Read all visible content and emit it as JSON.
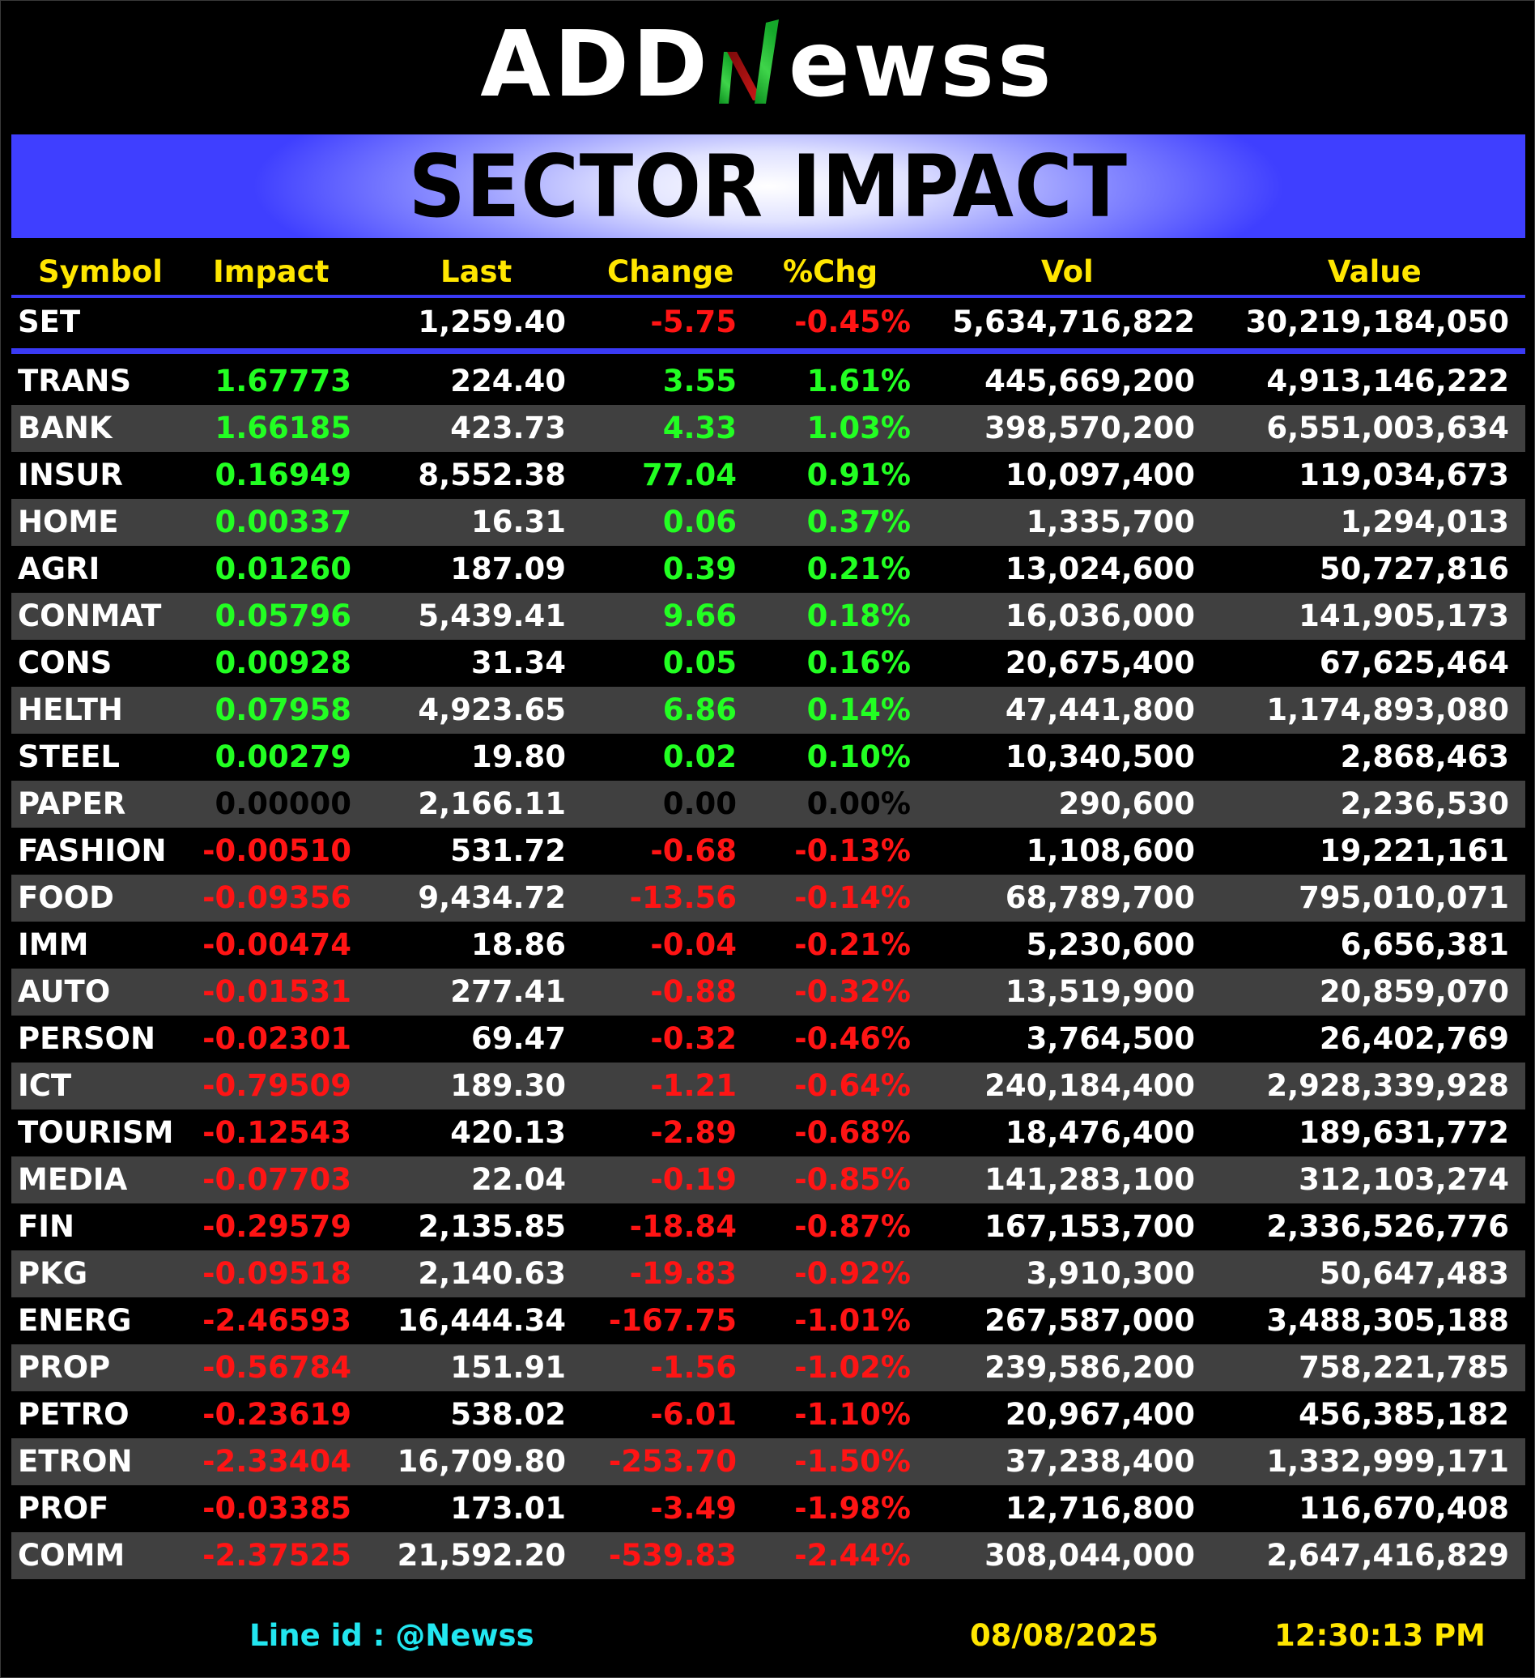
{
  "brand": {
    "logo_text": "ADDNewss",
    "logo_left": "ADD",
    "logo_right": "ewss"
  },
  "title": "SECTOR IMPACT",
  "columns": {
    "symbol": "Symbol",
    "impact": "Impact",
    "last": "Last",
    "change": "Change",
    "pct": "%Chg",
    "vol": "Vol",
    "value": "Value"
  },
  "index": {
    "symbol": "SET",
    "impact": "",
    "last": "1,259.40",
    "change": "-5.75",
    "pct": "-0.45%",
    "vol": "5,634,716,822",
    "value": "30,219,184,050",
    "dir": "neg"
  },
  "rows": [
    {
      "symbol": "TRANS",
      "impact": "1.67773",
      "last": "224.40",
      "change": "3.55",
      "pct": "1.61%",
      "vol": "445,669,200",
      "value": "4,913,146,222",
      "dir": "pos"
    },
    {
      "symbol": "BANK",
      "impact": "1.66185",
      "last": "423.73",
      "change": "4.33",
      "pct": "1.03%",
      "vol": "398,570,200",
      "value": "6,551,003,634",
      "dir": "pos"
    },
    {
      "symbol": "INSUR",
      "impact": "0.16949",
      "last": "8,552.38",
      "change": "77.04",
      "pct": "0.91%",
      "vol": "10,097,400",
      "value": "119,034,673",
      "dir": "pos"
    },
    {
      "symbol": "HOME",
      "impact": "0.00337",
      "last": "16.31",
      "change": "0.06",
      "pct": "0.37%",
      "vol": "1,335,700",
      "value": "1,294,013",
      "dir": "pos"
    },
    {
      "symbol": "AGRI",
      "impact": "0.01260",
      "last": "187.09",
      "change": "0.39",
      "pct": "0.21%",
      "vol": "13,024,600",
      "value": "50,727,816",
      "dir": "pos"
    },
    {
      "symbol": "CONMAT",
      "impact": "0.05796",
      "last": "5,439.41",
      "change": "9.66",
      "pct": "0.18%",
      "vol": "16,036,000",
      "value": "141,905,173",
      "dir": "pos"
    },
    {
      "symbol": "CONS",
      "impact": "0.00928",
      "last": "31.34",
      "change": "0.05",
      "pct": "0.16%",
      "vol": "20,675,400",
      "value": "67,625,464",
      "dir": "pos"
    },
    {
      "symbol": "HELTH",
      "impact": "0.07958",
      "last": "4,923.65",
      "change": "6.86",
      "pct": "0.14%",
      "vol": "47,441,800",
      "value": "1,174,893,080",
      "dir": "pos"
    },
    {
      "symbol": "STEEL",
      "impact": "0.00279",
      "last": "19.80",
      "change": "0.02",
      "pct": "0.10%",
      "vol": "10,340,500",
      "value": "2,868,463",
      "dir": "pos"
    },
    {
      "symbol": "PAPER",
      "impact": "0.00000",
      "last": "2,166.11",
      "change": "0.00",
      "pct": "0.00%",
      "vol": "290,600",
      "value": "2,236,530",
      "dir": "zero"
    },
    {
      "symbol": "FASHION",
      "impact": "-0.00510",
      "last": "531.72",
      "change": "-0.68",
      "pct": "-0.13%",
      "vol": "1,108,600",
      "value": "19,221,161",
      "dir": "neg"
    },
    {
      "symbol": "FOOD",
      "impact": "-0.09356",
      "last": "9,434.72",
      "change": "-13.56",
      "pct": "-0.14%",
      "vol": "68,789,700",
      "value": "795,010,071",
      "dir": "neg"
    },
    {
      "symbol": "IMM",
      "impact": "-0.00474",
      "last": "18.86",
      "change": "-0.04",
      "pct": "-0.21%",
      "vol": "5,230,600",
      "value": "6,656,381",
      "dir": "neg"
    },
    {
      "symbol": "AUTO",
      "impact": "-0.01531",
      "last": "277.41",
      "change": "-0.88",
      "pct": "-0.32%",
      "vol": "13,519,900",
      "value": "20,859,070",
      "dir": "neg"
    },
    {
      "symbol": "PERSON",
      "impact": "-0.02301",
      "last": "69.47",
      "change": "-0.32",
      "pct": "-0.46%",
      "vol": "3,764,500",
      "value": "26,402,769",
      "dir": "neg"
    },
    {
      "symbol": "ICT",
      "impact": "-0.79509",
      "last": "189.30",
      "change": "-1.21",
      "pct": "-0.64%",
      "vol": "240,184,400",
      "value": "2,928,339,928",
      "dir": "neg"
    },
    {
      "symbol": "TOURISM",
      "impact": "-0.12543",
      "last": "420.13",
      "change": "-2.89",
      "pct": "-0.68%",
      "vol": "18,476,400",
      "value": "189,631,772",
      "dir": "neg"
    },
    {
      "symbol": "MEDIA",
      "impact": "-0.07703",
      "last": "22.04",
      "change": "-0.19",
      "pct": "-0.85%",
      "vol": "141,283,100",
      "value": "312,103,274",
      "dir": "neg"
    },
    {
      "symbol": "FIN",
      "impact": "-0.29579",
      "last": "2,135.85",
      "change": "-18.84",
      "pct": "-0.87%",
      "vol": "167,153,700",
      "value": "2,336,526,776",
      "dir": "neg"
    },
    {
      "symbol": "PKG",
      "impact": "-0.09518",
      "last": "2,140.63",
      "change": "-19.83",
      "pct": "-0.92%",
      "vol": "3,910,300",
      "value": "50,647,483",
      "dir": "neg"
    },
    {
      "symbol": "ENERG",
      "impact": "-2.46593",
      "last": "16,444.34",
      "change": "-167.75",
      "pct": "-1.01%",
      "vol": "267,587,000",
      "value": "3,488,305,188",
      "dir": "neg"
    },
    {
      "symbol": "PROP",
      "impact": "-0.56784",
      "last": "151.91",
      "change": "-1.56",
      "pct": "-1.02%",
      "vol": "239,586,200",
      "value": "758,221,785",
      "dir": "neg"
    },
    {
      "symbol": "PETRO",
      "impact": "-0.23619",
      "last": "538.02",
      "change": "-6.01",
      "pct": "-1.10%",
      "vol": "20,967,400",
      "value": "456,385,182",
      "dir": "neg"
    },
    {
      "symbol": "ETRON",
      "impact": "-2.33404",
      "last": "16,709.80",
      "change": "-253.70",
      "pct": "-1.50%",
      "vol": "37,238,400",
      "value": "1,332,999,171",
      "dir": "neg"
    },
    {
      "symbol": "PROF",
      "impact": "-0.03385",
      "last": "173.01",
      "change": "-3.49",
      "pct": "-1.98%",
      "vol": "12,716,800",
      "value": "116,670,408",
      "dir": "neg"
    },
    {
      "symbol": "COMM",
      "impact": "-2.37525",
      "last": "21,592.20",
      "change": "-539.83",
      "pct": "-2.44%",
      "vol": "308,044,000",
      "value": "2,647,416,829",
      "dir": "neg"
    }
  ],
  "footer": {
    "line_id": "Line id  : @Newss",
    "date": "08/08/2025",
    "time": "12:30:13 PM"
  },
  "colors": {
    "positive": "#22ff22",
    "negative": "#ff1414",
    "header": "#ffe600",
    "accent": "#3a3af5",
    "line_id": "#22e6f0"
  },
  "icons": [
    "logo-n-mark-icon"
  ]
}
